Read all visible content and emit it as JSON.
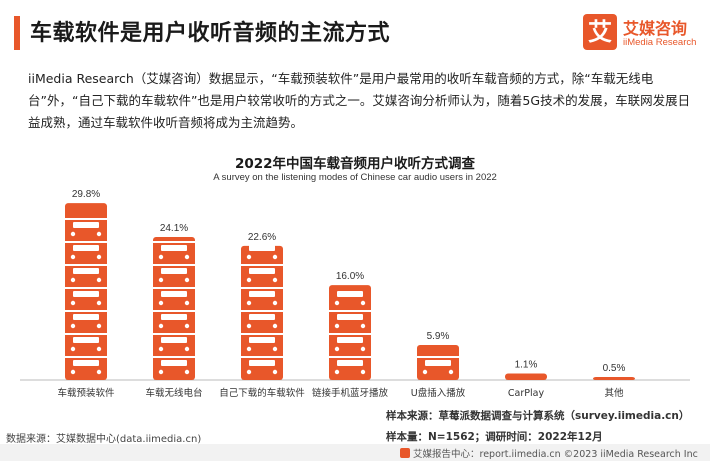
{
  "header": {
    "title": "车载软件是用户收听音频的主流方式",
    "logo_glyph": "艾",
    "logo_cn": "艾媒咨询",
    "logo_en": "iiMedia Research"
  },
  "intro": "iiMedia Research（艾媒咨询）数据显示，“车载预装软件”是用户最常用的收听车载音频的方式，除“车载无线电台”外，“自己下载的车载软件”也是用户较常收听的方式之一。艾媒咨询分析师认为，随着5G技术的发展，车联网发展日益成熟，通过车载软件收听音频将成为主流趋势。",
  "chart_data": {
    "type": "bar",
    "title": "2022年中国车载音频用户收听方式调查",
    "subtitle": "A survey on the listening modes of Chinese car audio users in 2022",
    "categories": [
      "车载预装软件",
      "车载无线电台",
      "自己下载的车载软件",
      "链接手机蓝牙播放",
      "U盘插入播放",
      "CarPlay",
      "其他"
    ],
    "values": [
      29.8,
      24.1,
      22.6,
      16.0,
      5.9,
      1.1,
      0.5
    ],
    "value_labels": [
      "29.8%",
      "24.1%",
      "22.6%",
      "16.0%",
      "5.9%",
      "1.1%",
      "0.5%"
    ],
    "unit": "%",
    "ylim": [
      0,
      30
    ],
    "grid": false,
    "bar_color": "#e8572a",
    "bar_style": "stacked car icons"
  },
  "sources": {
    "left": "数据来源：艾媒数据中心(data.iimedia.cn)",
    "right_line1": "样本来源：草莓派数据调查与计算系统（survey.iimedia.cn）",
    "right_line2": "样本量：N=1562；调研时间：2022年12月"
  },
  "footer": {
    "text": "艾媒报告中心：report.iimedia.cn    ©2023  iiMedia Research  Inc"
  },
  "colors": {
    "accent": "#e8572a",
    "axis": "#bbbbbb"
  }
}
